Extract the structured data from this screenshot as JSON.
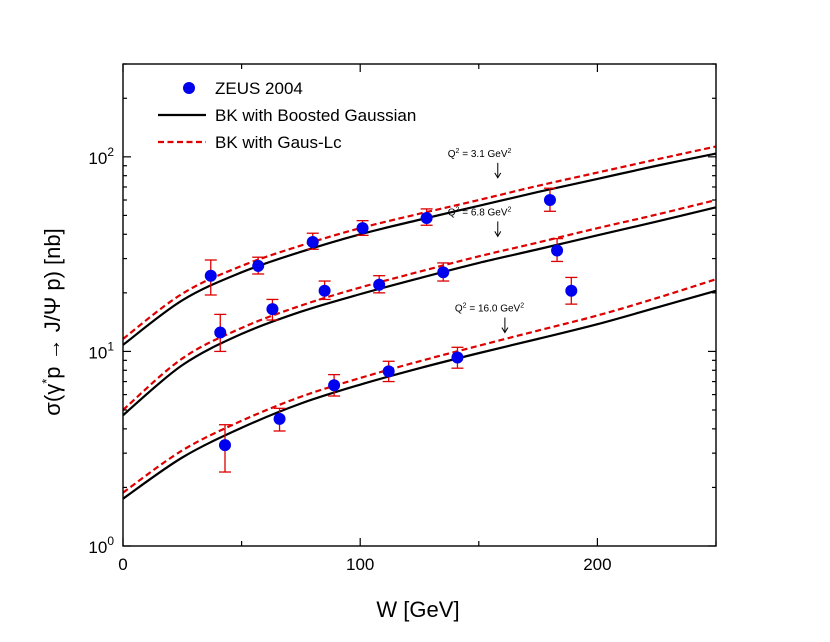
{
  "chart_data": {
    "type": "scatter",
    "xlabel_parts": {
      "pre": "W ",
      "bracket_open": "[",
      "unit": "GeV",
      "bracket_close": "]"
    },
    "ylabel_parts": {
      "sigma": "σ(γ",
      "star": "*",
      "mid": "p → J/Ψ p) [nb]"
    },
    "x_range": [
      0,
      250
    ],
    "y_range": [
      1,
      300
    ],
    "y_scale": "log",
    "x_ticks": [
      {
        "value": 0,
        "label": "0"
      },
      {
        "value": 100,
        "label": "100"
      },
      {
        "value": 200,
        "label": "200"
      }
    ],
    "y_ticks": [
      {
        "value": 1,
        "base": "10",
        "exp": "0"
      },
      {
        "value": 10,
        "base": "10",
        "exp": "1"
      },
      {
        "value": 100,
        "base": "10",
        "exp": "2"
      }
    ],
    "legend": {
      "placement": "top-left",
      "entries": [
        {
          "label": "ZEUS 2004",
          "kind": "marker",
          "color": "#0000ee"
        },
        {
          "label": "BK with Boosted Gaussian",
          "kind": "line",
          "color": "#000000",
          "dash": "solid"
        },
        {
          "label": "BK with Gaus-Lc",
          "kind": "line",
          "color": "#dd0000",
          "dash": "dashed"
        }
      ]
    },
    "annotations": [
      {
        "q": "Q",
        "sup1": "2",
        "mid": " = 3.1 GeV",
        "sup2": "2",
        "x": 158,
        "y": 78
      },
      {
        "q": "Q",
        "sup1": "2",
        "mid": " = 6.8 GeV",
        "sup2": "2",
        "x": 158,
        "y": 39
      },
      {
        "q": "Q",
        "sup1": "2",
        "mid": " = 16.0 GeV",
        "sup2": "2",
        "x": 161,
        "y": 12.5
      }
    ],
    "series": [
      {
        "name": "ZEUS 2004",
        "kind": "points",
        "color": "#0000ee",
        "errorbar_color": "#dd0000",
        "points": [
          {
            "x": 37,
            "y": 24.5,
            "ylo": 19.5,
            "yhi": 29.5
          },
          {
            "x": 57,
            "y": 27.5,
            "ylo": 25.0,
            "yhi": 30.5
          },
          {
            "x": 80,
            "y": 36.5,
            "ylo": 33.5,
            "yhi": 40.5
          },
          {
            "x": 101,
            "y": 43,
            "ylo": 39.5,
            "yhi": 47
          },
          {
            "x": 128,
            "y": 48.5,
            "ylo": 44.5,
            "yhi": 54
          },
          {
            "x": 180,
            "y": 60,
            "ylo": 52.5,
            "yhi": 69
          },
          {
            "x": 41,
            "y": 12.5,
            "ylo": 10.0,
            "yhi": 15.5
          },
          {
            "x": 63,
            "y": 16.5,
            "ylo": 14.5,
            "yhi": 18.5
          },
          {
            "x": 85,
            "y": 20.5,
            "ylo": 18.5,
            "yhi": 23
          },
          {
            "x": 108,
            "y": 22,
            "ylo": 20.0,
            "yhi": 24.5
          },
          {
            "x": 135,
            "y": 25.5,
            "ylo": 23.0,
            "yhi": 28.5
          },
          {
            "x": 183,
            "y": 33,
            "ylo": 29.0,
            "yhi": 38
          },
          {
            "x": 189,
            "y": 20.5,
            "ylo": 17.5,
            "yhi": 24
          },
          {
            "x": 43,
            "y": 3.3,
            "ylo": 2.4,
            "yhi": 4.2
          },
          {
            "x": 66,
            "y": 4.5,
            "ylo": 3.9,
            "yhi": 5.1
          },
          {
            "x": 89,
            "y": 6.7,
            "ylo": 5.9,
            "yhi": 7.6
          },
          {
            "x": 112,
            "y": 7.9,
            "ylo": 7.0,
            "yhi": 8.9
          },
          {
            "x": 141,
            "y": 9.3,
            "ylo": 8.2,
            "yhi": 10.5
          }
        ]
      },
      {
        "name": "BK with Boosted Gaussian",
        "kind": "curve",
        "color": "#000000",
        "dash": "solid",
        "curves": [
          {
            "x": [
              0,
              25,
              50,
              75,
              100,
              125,
              150,
              175,
              200,
              225,
              250
            ],
            "y": [
              10.8,
              18.3,
              25.5,
              32.5,
              40,
              47.5,
              56,
              66,
              77,
              90,
              104
            ]
          },
          {
            "x": [
              0,
              25,
              50,
              75,
              100,
              125,
              150,
              175,
              200,
              225,
              250
            ],
            "y": [
              4.7,
              8.5,
              12.3,
              16.0,
              19.7,
              23.8,
              28.5,
              33.5,
              39.5,
              46.5,
              55
            ]
          },
          {
            "x": [
              0,
              25,
              50,
              75,
              100,
              125,
              150,
              175,
              200,
              225,
              250
            ],
            "y": [
              1.75,
              2.85,
              4.05,
              5.4,
              6.75,
              8.2,
              9.8,
              11.6,
              13.8,
              16.8,
              20.5
            ]
          }
        ]
      },
      {
        "name": "BK with Gaus-Lc",
        "kind": "curve",
        "color": "#dd0000",
        "dash": "dashed",
        "curves": [
          {
            "x": [
              0,
              25,
              50,
              75,
              100,
              125,
              150,
              175,
              200,
              225,
              250
            ],
            "y": [
              11.6,
              19.8,
              27.5,
              35.0,
              43,
              51,
              60,
              71,
              83,
              97,
              113
            ]
          },
          {
            "x": [
              0,
              25,
              50,
              75,
              100,
              125,
              150,
              175,
              200,
              225,
              250
            ],
            "y": [
              5.0,
              9.2,
              13.2,
              17.2,
              21.3,
              25.7,
              30.8,
              36.3,
              43,
              50.5,
              60
            ]
          },
          {
            "x": [
              0,
              25,
              50,
              75,
              100,
              125,
              150,
              175,
              200,
              225,
              250
            ],
            "y": [
              1.88,
              3.1,
              4.4,
              5.85,
              7.3,
              8.9,
              10.7,
              12.8,
              15.3,
              18.8,
              23.5
            ]
          }
        ]
      }
    ]
  }
}
